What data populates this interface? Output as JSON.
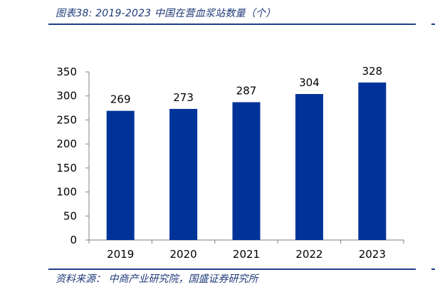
{
  "header": {
    "title": "图表38:  2019-2023 中国在营血浆站数量（个）"
  },
  "footer": {
    "source": "资料来源： 中商产业研究院，国盛证券研究所"
  },
  "colors": {
    "bar": "#003399",
    "axis": "#808080",
    "rule": "#1f3f88",
    "text_accent": "#1f3a78"
  },
  "chart_data": {
    "type": "bar",
    "title": "",
    "xlabel": "",
    "ylabel": "",
    "categories": [
      "2019",
      "2020",
      "2021",
      "2022",
      "2023"
    ],
    "values": [
      269,
      273,
      287,
      304,
      328
    ],
    "data_labels": [
      "269",
      "273",
      "287",
      "304",
      "328"
    ],
    "ylim": [
      0,
      350
    ],
    "yticks": [
      0,
      50,
      100,
      150,
      200,
      250,
      300,
      350
    ],
    "grid": false,
    "legend": "none"
  }
}
